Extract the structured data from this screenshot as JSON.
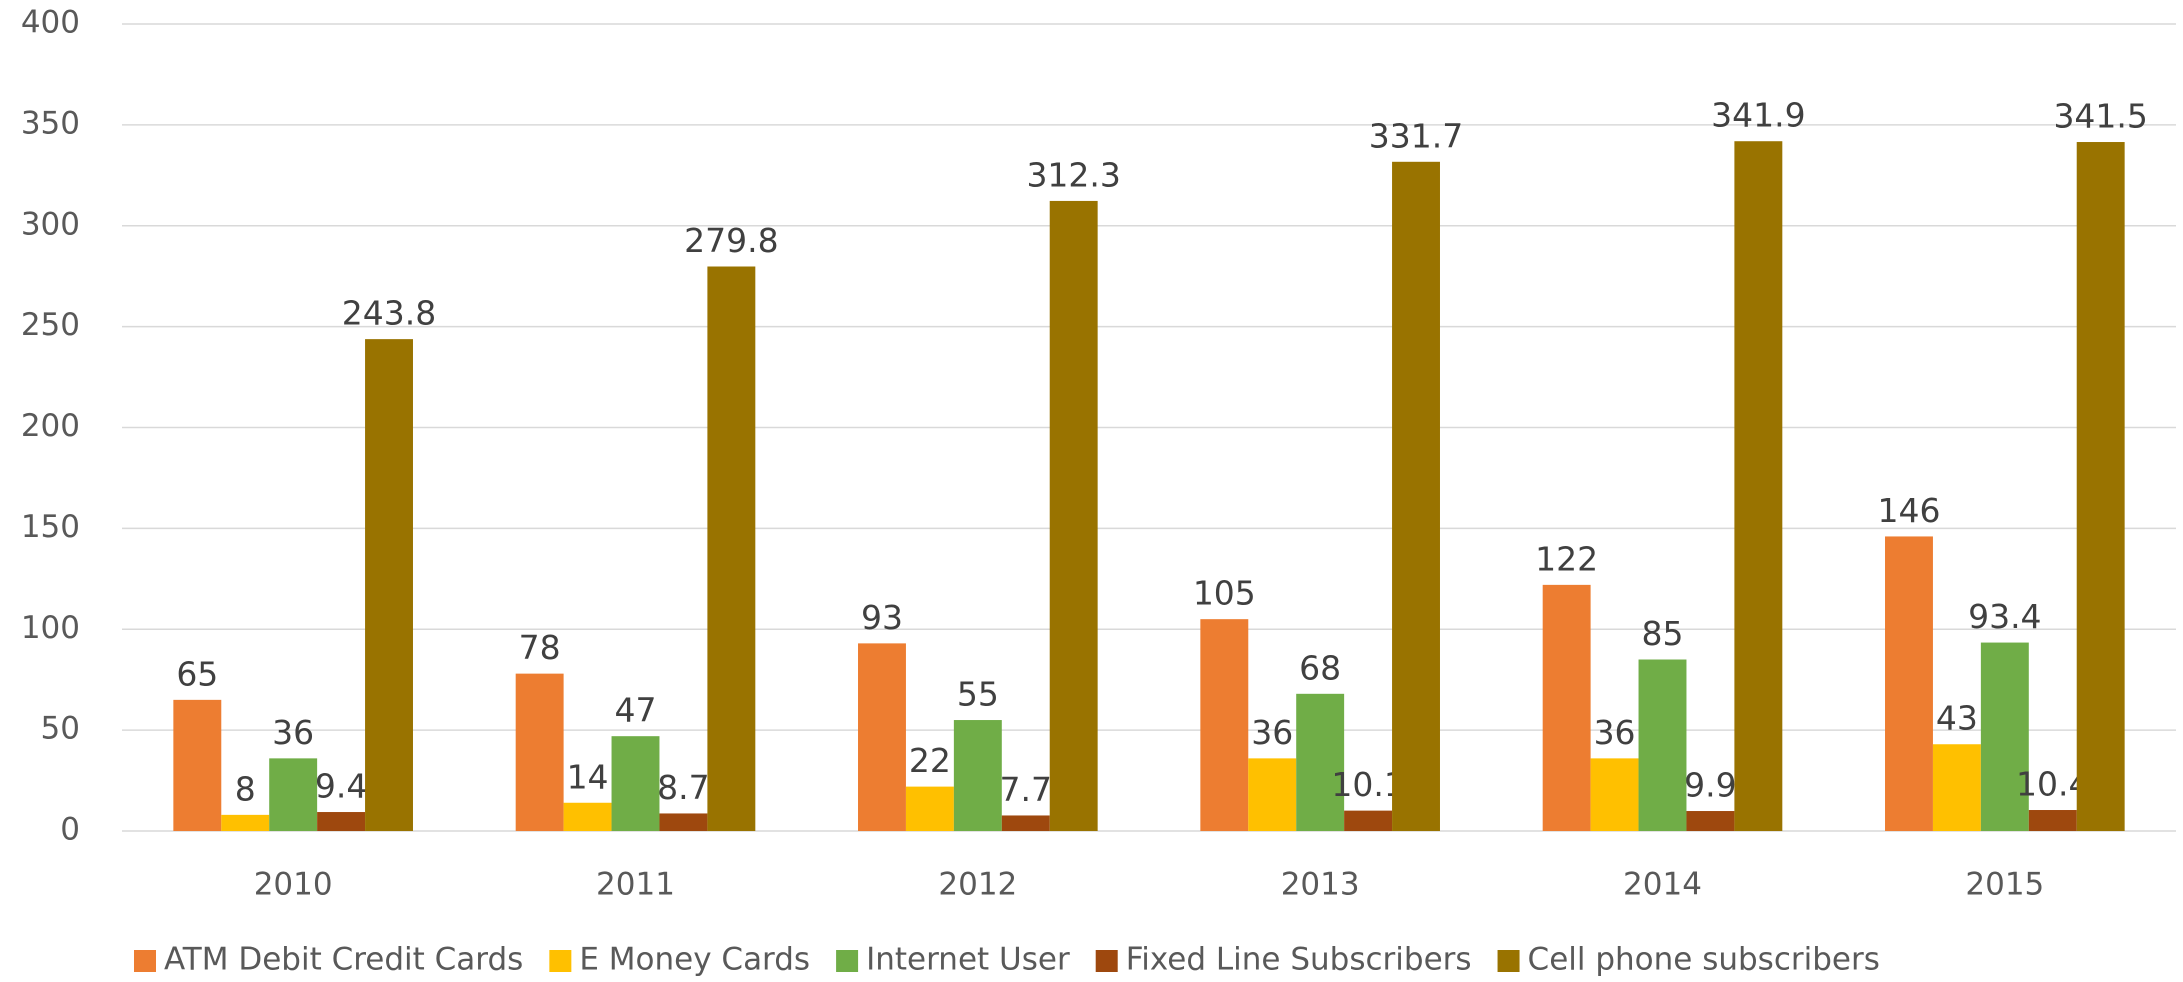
{
  "chart_data": {
    "type": "bar",
    "categories": [
      "2010",
      "2011",
      "2012",
      "2013",
      "2014",
      "2015"
    ],
    "series": [
      {
        "name": "ATM Debit Credit Cards",
        "color": "#ED7D31",
        "values": [
          65,
          78,
          93,
          105,
          122,
          146
        ]
      },
      {
        "name": "E Money Cards",
        "color": "#FFC000",
        "values": [
          8,
          14,
          22,
          36,
          36,
          43
        ]
      },
      {
        "name": "Internet User",
        "color": "#70AD47",
        "values": [
          36,
          47,
          55,
          68,
          85,
          93.4
        ]
      },
      {
        "name": "Fixed Line Subscribers",
        "color": "#9E480E",
        "values": [
          9.4,
          8.7,
          7.7,
          10.1,
          9.9,
          10.4
        ]
      },
      {
        "name": "Cell phone subscribers",
        "color": "#997300",
        "values": [
          243.8,
          279.8,
          312.3,
          331.7,
          341.9,
          341.5
        ]
      }
    ],
    "ylim": [
      0,
      400
    ],
    "yticks": [
      0,
      50,
      100,
      150,
      200,
      250,
      300,
      350,
      400
    ],
    "grid": true,
    "legend": "bottom"
  }
}
